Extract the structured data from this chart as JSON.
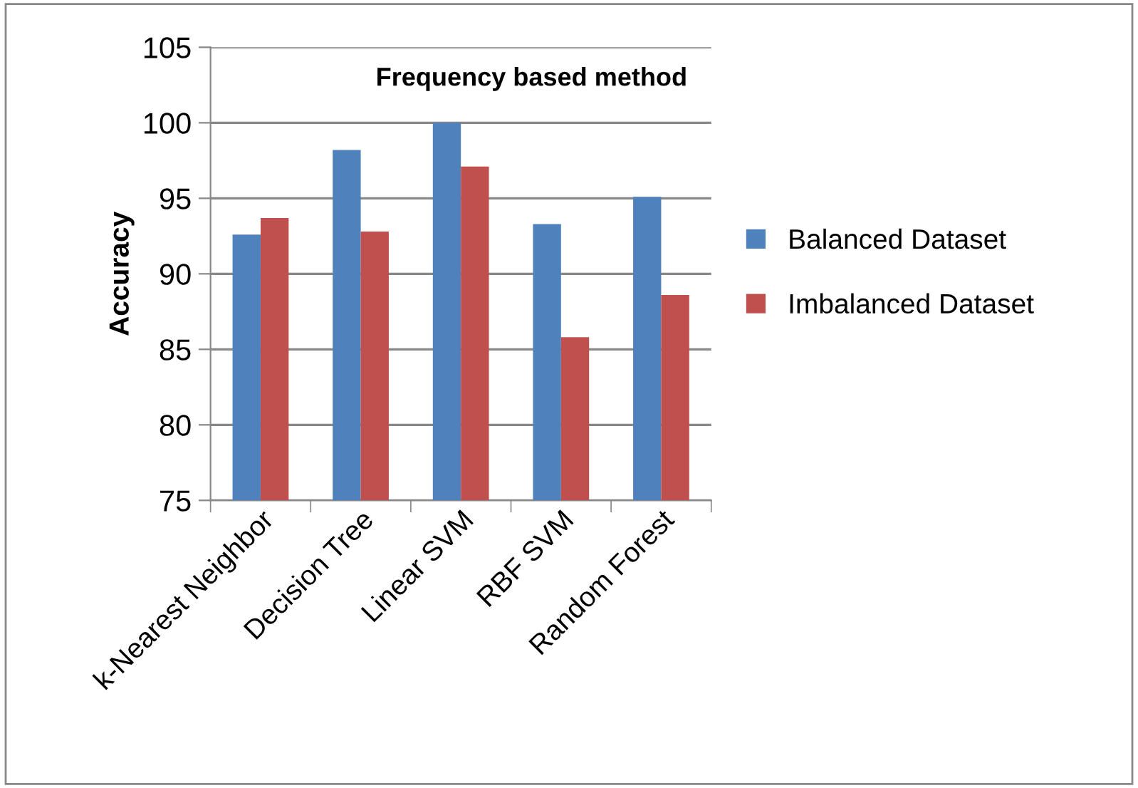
{
  "chart_data": {
    "type": "bar",
    "title": "Frequency based method",
    "ylabel": "Accuracy",
    "categories": [
      "k-Nearest Neighbor",
      "Decision Tree",
      "Linear SVM",
      "RBF SVM",
      "Random Forest"
    ],
    "series": [
      {
        "name": "Balanced Dataset",
        "color": "#4f81bd",
        "values": [
          92.6,
          98.2,
          100,
          93.3,
          95.1
        ]
      },
      {
        "name": "Imbalanced Dataset",
        "color": "#c0504d",
        "values": [
          93.7,
          92.8,
          97.1,
          85.8,
          88.6
        ]
      }
    ],
    "ylim": [
      75,
      105
    ],
    "yticks": [
      75,
      80,
      85,
      90,
      95,
      100,
      105
    ],
    "grid": "y",
    "legend": "right"
  }
}
